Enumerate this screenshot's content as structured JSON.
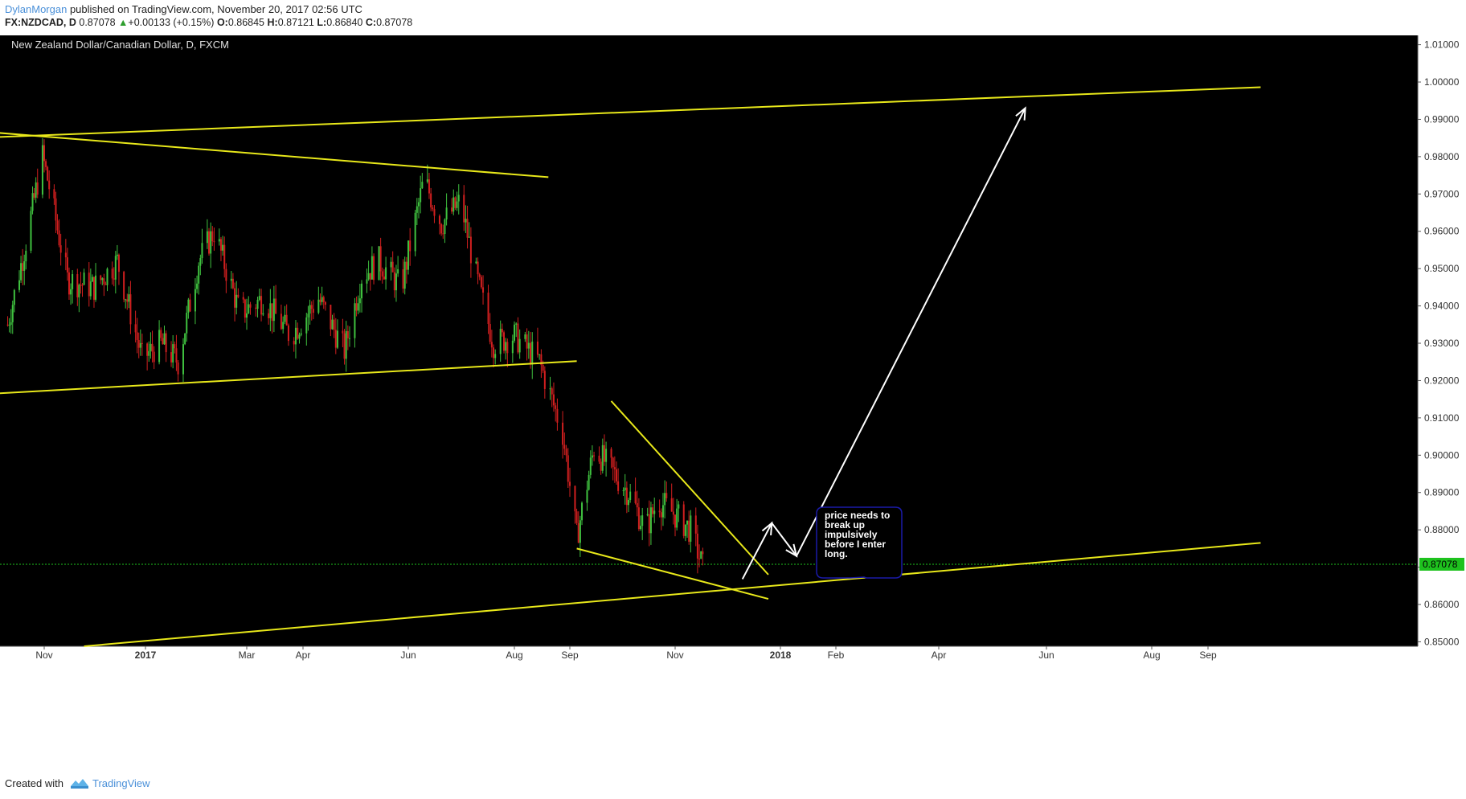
{
  "header": {
    "author": "DylanMorgan",
    "published_text": "published on TradingView.com, November 20, 2017 02:56 UTC",
    "symbol": "FX:NZDCAD, D",
    "last": "0.87078",
    "change": "+0.00133 (+0.15%)",
    "open_label": "O:",
    "open": "0.86845",
    "high_label": "H:",
    "high": "0.87121",
    "low_label": "L:",
    "low": "0.86840",
    "close_label": "C:",
    "close": "0.87078"
  },
  "footer": {
    "created_with": "Created with",
    "brand": "TradingView"
  },
  "colors": {
    "background": "#000000",
    "up": "#3fc13f",
    "down": "#d11f1f",
    "trendline": "#e8e81a",
    "arrow": "#ffffff",
    "last_price": "#1ec21e",
    "note_border": "#1a1aa8"
  },
  "chart_data": {
    "type": "candlestick",
    "title": "New Zealand Dollar/Canadian Dollar, D, FXCM",
    "x_ticks": [
      "Nov",
      "2017",
      "Mar",
      "Apr",
      "Jun",
      "Aug",
      "Sep",
      "Nov",
      "2018",
      "Feb",
      "Apr",
      "Jun",
      "Aug",
      "Sep"
    ],
    "y_ticks": [
      "0.85000",
      "0.86000",
      "0.87000",
      "0.88000",
      "0.89000",
      "0.90000",
      "0.91000",
      "0.92000",
      "0.93000",
      "0.94000",
      "0.95000",
      "0.96000",
      "0.97000",
      "0.98000",
      "0.99000",
      "1.00000",
      "1.01000"
    ],
    "ylim": [
      0.8488,
      1.0125
    ],
    "last_price": 0.87078,
    "last_price_label": "0.87078",
    "price_path": [
      [
        "2016-10-10",
        0.935
      ],
      [
        "2016-10-20",
        0.955
      ],
      [
        "2016-10-31",
        0.98
      ],
      [
        "2016-11-04",
        0.972
      ],
      [
        "2016-11-15",
        0.947
      ],
      [
        "2016-12-01",
        0.945
      ],
      [
        "2016-12-15",
        0.952
      ],
      [
        "2016-12-30",
        0.926
      ],
      [
        "2017-01-10",
        0.93
      ],
      [
        "2017-01-20",
        0.925
      ],
      [
        "2017-02-01",
        0.952
      ],
      [
        "2017-02-10",
        0.96
      ],
      [
        "2017-02-25",
        0.938
      ],
      [
        "2017-03-10",
        0.942
      ],
      [
        "2017-03-25",
        0.932
      ],
      [
        "2017-04-10",
        0.942
      ],
      [
        "2017-04-25",
        0.928
      ],
      [
        "2017-05-05",
        0.948
      ],
      [
        "2017-05-15",
        0.952
      ],
      [
        "2017-05-28",
        0.945
      ],
      [
        "2017-06-10",
        0.974
      ],
      [
        "2017-06-20",
        0.962
      ],
      [
        "2017-07-01",
        0.968
      ],
      [
        "2017-07-10",
        0.948
      ],
      [
        "2017-07-20",
        0.93
      ],
      [
        "2017-08-01",
        0.932
      ],
      [
        "2017-08-15",
        0.925
      ],
      [
        "2017-08-28",
        0.906
      ],
      [
        "2017-09-05",
        0.878
      ],
      [
        "2017-09-15",
        0.902
      ],
      [
        "2017-09-25",
        0.896
      ],
      [
        "2017-10-05",
        0.89
      ],
      [
        "2017-10-15",
        0.88
      ],
      [
        "2017-10-22",
        0.888
      ],
      [
        "2017-11-01",
        0.884
      ],
      [
        "2017-11-10",
        0.88
      ],
      [
        "2017-11-17",
        0.87
      ]
    ],
    "trendlines": [
      {
        "name": "upper-channel",
        "from": [
          "2016-10-01",
          0.9852
        ],
        "to": [
          "2018-09-30",
          0.9986
        ]
      },
      {
        "name": "top-resistance",
        "from": [
          "2016-10-01",
          0.9865
        ],
        "to": [
          "2017-08-20",
          0.9745
        ]
      },
      {
        "name": "mid-support",
        "from": [
          "2016-10-01",
          0.9165
        ],
        "to": [
          "2017-09-05",
          0.9252
        ]
      },
      {
        "name": "wedge-upper",
        "from": [
          "2017-09-25",
          0.9145
        ],
        "to": [
          "2017-12-25",
          0.868
        ]
      },
      {
        "name": "wedge-lower",
        "from": [
          "2017-09-05",
          0.875
        ],
        "to": [
          "2017-12-25",
          0.8615
        ]
      },
      {
        "name": "lower-channel",
        "from": [
          "2016-11-25",
          0.8488
        ],
        "to": [
          "2018-09-30",
          0.8765
        ]
      }
    ],
    "projection": [
      [
        "2017-12-10",
        0.8668
      ],
      [
        "2017-12-27",
        0.8818
      ],
      [
        "2018-01-10",
        0.873
      ],
      [
        "2018-05-20",
        0.993
      ]
    ],
    "annotation": {
      "text": "price needs to break up impulsively before I enter long.",
      "lines": [
        "price needs to",
        "break up",
        "impulsively",
        "before I enter",
        "long."
      ]
    }
  }
}
